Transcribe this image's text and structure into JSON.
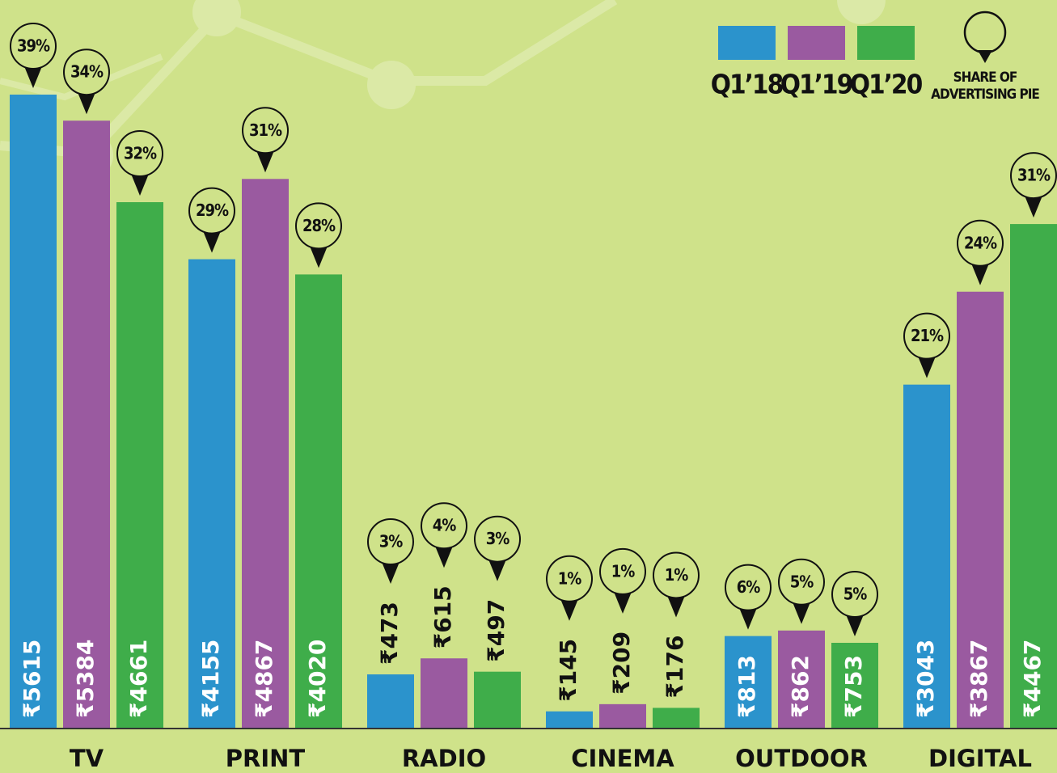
{
  "chart_data": {
    "type": "bar",
    "categories": [
      "TV",
      "PRINT",
      "RADIO",
      "CINEMA",
      "OUTDOOR",
      "DIGITAL"
    ],
    "series": [
      {
        "name": "Q1’18",
        "color": "#2b93cc",
        "values": [
          5615,
          4155,
          473,
          145,
          813,
          3043
        ],
        "value_labels": [
          "₹5615",
          "₹4155",
          "₹473",
          "₹145",
          "₹813",
          "₹3043"
        ],
        "shares": [
          39,
          29,
          3,
          1,
          6,
          21
        ],
        "share_labels": [
          "39%",
          "29%",
          "3%",
          "1%",
          "6%",
          "21%"
        ]
      },
      {
        "name": "Q1’19",
        "color": "#9a5aa0",
        "values": [
          5384,
          4867,
          615,
          209,
          862,
          3867
        ],
        "value_labels": [
          "₹5384",
          "₹4867",
          "₹615",
          "₹209",
          "₹862",
          "₹3867"
        ],
        "shares": [
          34,
          31,
          4,
          1,
          5,
          24
        ],
        "share_labels": [
          "34%",
          "31%",
          "4%",
          "1%",
          "5%",
          "24%"
        ]
      },
      {
        "name": "Q1’20",
        "color": "#3fad4a",
        "values": [
          4661,
          4020,
          497,
          176,
          753,
          4467
        ],
        "value_labels": [
          "₹4661",
          "₹4020",
          "₹497",
          "₹176",
          "₹753",
          "₹4467"
        ],
        "shares": [
          32,
          28,
          3,
          1,
          5,
          31
        ],
        "share_labels": [
          "32%",
          "28%",
          "3%",
          "1%",
          "5%",
          "31%"
        ]
      }
    ],
    "legend_note": [
      "SHARE OF",
      "ADVERTISING PIE"
    ]
  }
}
